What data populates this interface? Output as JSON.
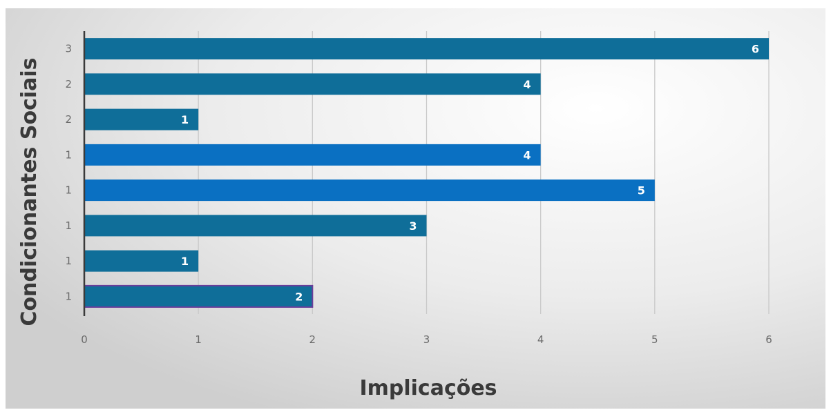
{
  "chart_data": {
    "type": "bar",
    "orientation": "horizontal",
    "categories": [
      "1",
      "1",
      "1",
      "1",
      "1",
      "2",
      "2",
      "3"
    ],
    "values": [
      2,
      1,
      3,
      5,
      4,
      1,
      4,
      6
    ],
    "xlabel": "Implicações",
    "ylabel": "Condicionantes Sociais",
    "xlim": [
      0,
      6
    ],
    "xticks": [
      "0",
      "1",
      "2",
      "3",
      "4",
      "5",
      "6"
    ],
    "grid": "vertical",
    "data_labels": true,
    "colors": {
      "bar": "#0f6e99",
      "bar_highlight": "#0a70c2",
      "bar_outline_first": "#6a3d9a",
      "grid": "#c9c9c9",
      "axis": "#3a3a3a"
    }
  }
}
